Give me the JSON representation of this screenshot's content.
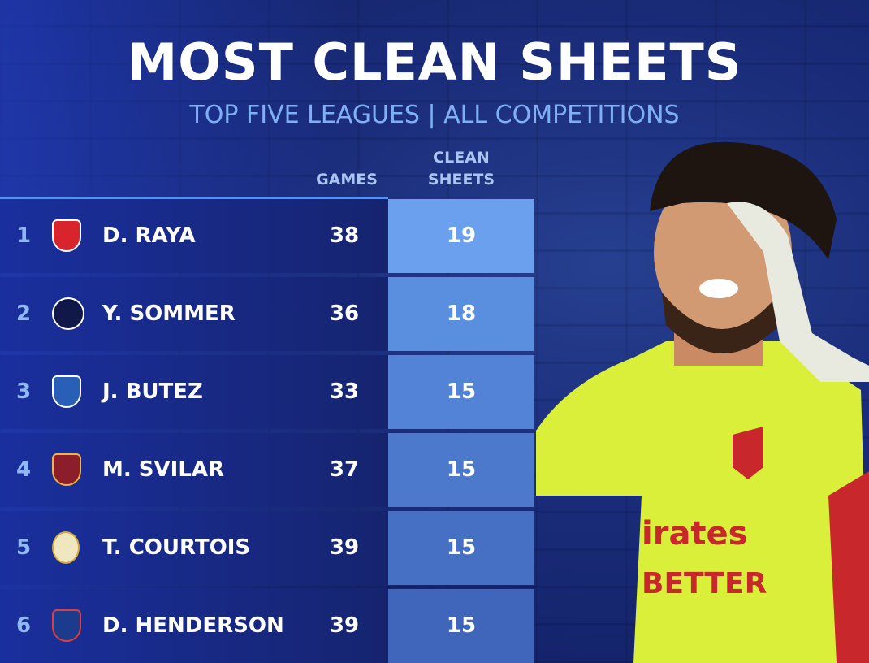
{
  "header": {
    "title": "MOST CLEAN SHEETS",
    "subtitle": "TOP FIVE LEAGUES | ALL COMPETITIONS"
  },
  "table": {
    "columns": [
      "GAMES",
      "CLEAN SHEETS"
    ],
    "rows": [
      {
        "rank": "1",
        "name": "D. RAYA",
        "games": "38",
        "clean_sheets": "19"
      },
      {
        "rank": "2",
        "name": "Y. SOMMER",
        "games": "36",
        "clean_sheets": "18"
      },
      {
        "rank": "3",
        "name": "J. BUTEZ",
        "games": "33",
        "clean_sheets": "15"
      },
      {
        "rank": "4",
        "name": "M. SVILAR",
        "games": "37",
        "clean_sheets": "15"
      },
      {
        "rank": "5",
        "name": "T. COURTOIS",
        "games": "39",
        "clean_sheets": "15"
      },
      {
        "rank": "6",
        "name": "D. HENDERSON",
        "games": "39",
        "clean_sheets": "15"
      }
    ]
  }
}
